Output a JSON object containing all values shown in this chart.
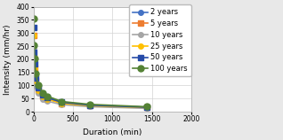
{
  "title": "",
  "xlabel": "Duration (min)",
  "ylabel": "Intensity (mm/hr)",
  "xlim": [
    0,
    2000
  ],
  "ylim": [
    0,
    400
  ],
  "xticks": [
    0,
    500,
    1000,
    1500,
    2000
  ],
  "yticks": [
    0,
    50,
    100,
    150,
    200,
    250,
    300,
    350,
    400
  ],
  "durations": [
    5,
    10,
    15,
    30,
    60,
    120,
    180,
    360,
    720,
    1440
  ],
  "series": [
    {
      "label": "2 years",
      "color": "#4472C4",
      "marker": "o",
      "markersize": 4,
      "linewidth": 1.2,
      "values": [
        320,
        228,
        183,
        130,
        92,
        65,
        53,
        36,
        25,
        17
      ]
    },
    {
      "label": "5 years",
      "color": "#ED7D31",
      "marker": "s",
      "markersize": 4,
      "linewidth": 1.2,
      "values": [
        290,
        206,
        166,
        117,
        83,
        58,
        48,
        32,
        23,
        16
      ]
    },
    {
      "label": "10 years",
      "color": "#A5A5A5",
      "marker": "o",
      "markersize": 4,
      "linewidth": 1.2,
      "values": [
        245,
        174,
        140,
        99,
        70,
        49,
        40,
        27,
        19,
        13
      ]
    },
    {
      "label": "25 years",
      "color": "#FFC000",
      "marker": "o",
      "markersize": 4,
      "linewidth": 1.2,
      "values": [
        290,
        206,
        166,
        117,
        83,
        58,
        48,
        32,
        23,
        16
      ]
    },
    {
      "label": "50 years",
      "color": "#264BA8",
      "marker": "s",
      "markersize": 4,
      "linewidth": 1.2,
      "values": [
        320,
        228,
        183,
        130,
        92,
        65,
        53,
        36,
        25,
        17
      ]
    },
    {
      "label": "100 years",
      "color": "#548235",
      "marker": "o",
      "markersize": 5,
      "linewidth": 1.2,
      "values": [
        355,
        252,
        203,
        144,
        102,
        72,
        59,
        39,
        28,
        19
      ]
    }
  ],
  "bg_color": "#FFFFFF",
  "grid_color": "#D3D3D3",
  "fig_bg": "#E8E8E8"
}
